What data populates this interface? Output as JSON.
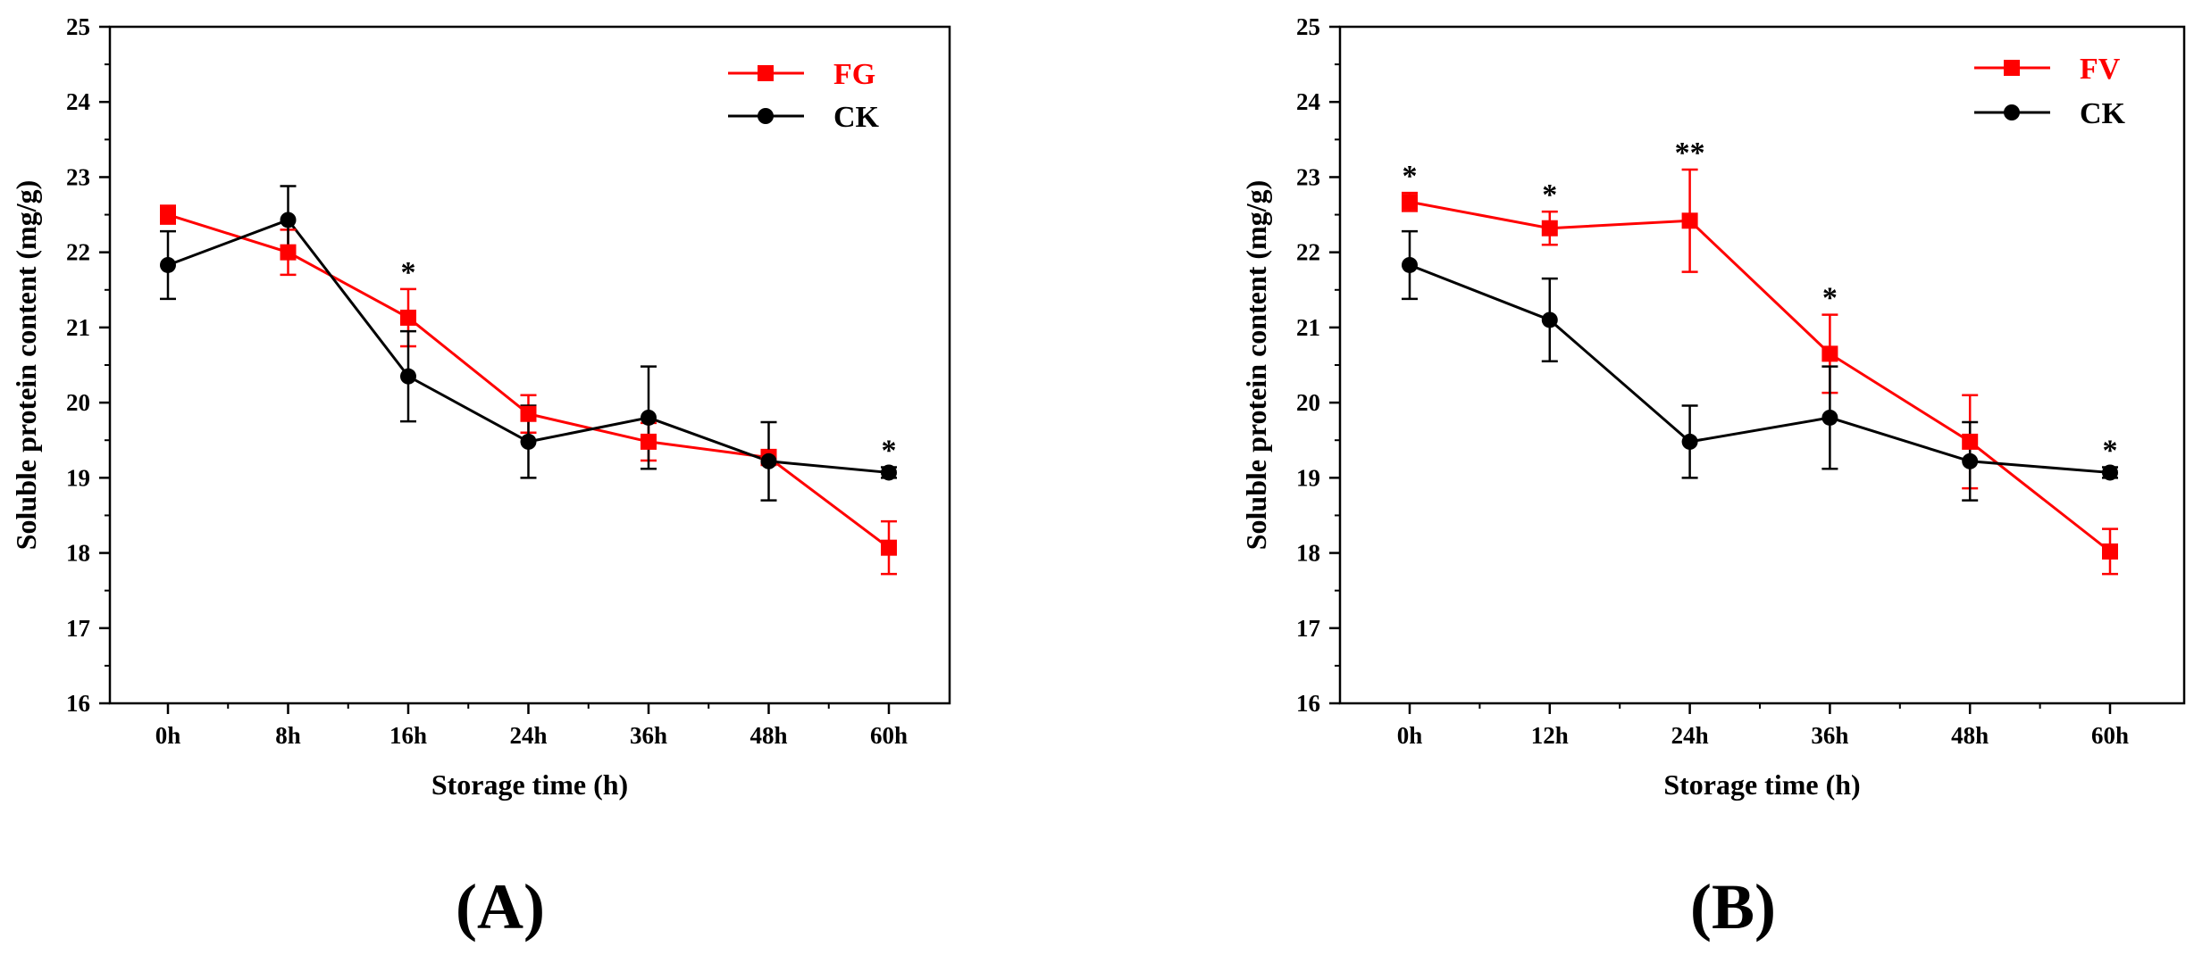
{
  "colors": {
    "treatment": "#ff0000",
    "control": "#000000",
    "axis": "#000000"
  },
  "chart_data": [
    {
      "type": "line",
      "panel_label": "(A)",
      "xlabel": "Storage time (h)",
      "ylabel": "Soluble protein content (mg/g)",
      "ylim": [
        16,
        25
      ],
      "yticks": [
        "16",
        "17",
        "18",
        "19",
        "20",
        "21",
        "22",
        "23",
        "24",
        "25"
      ],
      "categories": [
        "0h",
        "8h",
        "16h",
        "24h",
        "36h",
        "48h",
        "60h"
      ],
      "legend_position": "top-right",
      "series": [
        {
          "name": "FG",
          "color": "#ff0000",
          "marker": "square",
          "values": [
            22.5,
            22.0,
            21.13,
            19.85,
            19.48,
            19.27,
            18.07
          ],
          "errors": [
            0.12,
            0.3,
            0.38,
            0.25,
            0.25,
            0.1,
            0.35
          ]
        },
        {
          "name": "CK",
          "color": "#000000",
          "marker": "circle",
          "values": [
            21.83,
            22.43,
            20.35,
            19.48,
            19.8,
            19.22,
            19.07
          ],
          "errors": [
            0.45,
            0.45,
            0.6,
            0.48,
            0.68,
            0.52,
            0.07
          ]
        }
      ],
      "annotations": [
        "",
        "",
        "*",
        "",
        "",
        "",
        "*"
      ]
    },
    {
      "type": "line",
      "panel_label": "(B)",
      "xlabel": "Storage time (h)",
      "ylabel": "Soluble protein content (mg/g)",
      "ylim": [
        16,
        25
      ],
      "yticks": [
        "16",
        "17",
        "18",
        "19",
        "20",
        "21",
        "22",
        "23",
        "24",
        "25"
      ],
      "categories": [
        "0h",
        "12h",
        "24h",
        "36h",
        "48h",
        "60h"
      ],
      "legend_position": "top-right",
      "series": [
        {
          "name": "FV",
          "color": "#ff0000",
          "marker": "square",
          "values": [
            22.67,
            22.32,
            22.42,
            20.65,
            19.48,
            18.02
          ],
          "errors": [
            0.12,
            0.22,
            0.68,
            0.52,
            0.62,
            0.3
          ]
        },
        {
          "name": "CK",
          "color": "#000000",
          "marker": "circle",
          "values": [
            21.83,
            21.1,
            19.48,
            19.8,
            19.22,
            19.07
          ],
          "errors": [
            0.45,
            0.55,
            0.48,
            0.68,
            0.52,
            0.07
          ]
        }
      ],
      "annotations": [
        "*",
        "*",
        "**",
        "*",
        "",
        "*"
      ]
    }
  ]
}
